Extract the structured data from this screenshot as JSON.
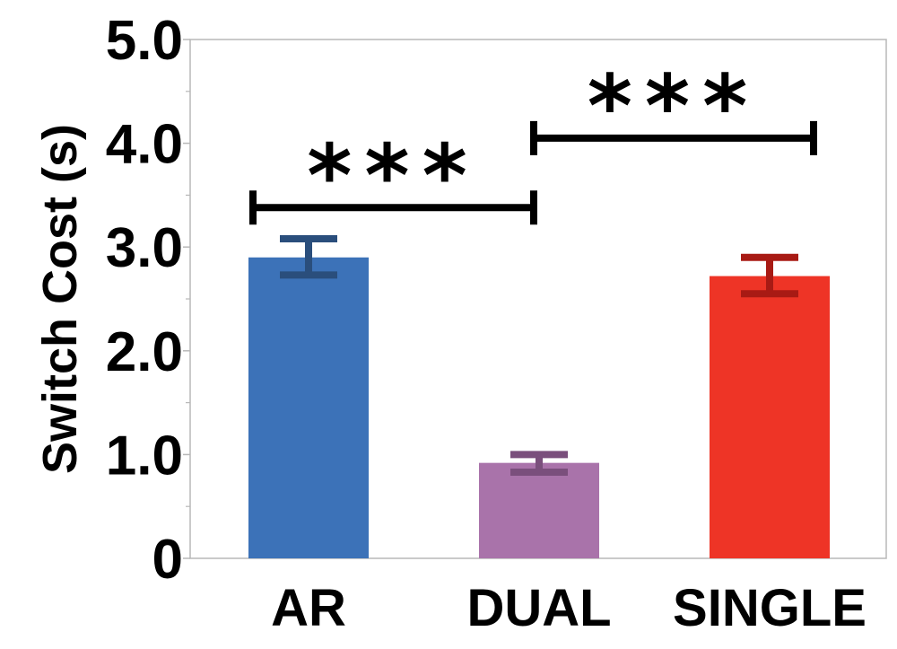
{
  "chart_data": {
    "type": "bar",
    "title": "",
    "xlabel": "",
    "ylabel": "Switch Cost (s)",
    "ylim": [
      0,
      5.0
    ],
    "yticks": [
      {
        "value": 0,
        "label": "0"
      },
      {
        "value": 1,
        "label": "1.0"
      },
      {
        "value": 2,
        "label": "2.0"
      },
      {
        "value": 3,
        "label": "3.0"
      },
      {
        "value": 4,
        "label": "4.0"
      },
      {
        "value": 5,
        "label": "5.0"
      }
    ],
    "minor_ticks": [
      0.5,
      1.5,
      2.5,
      3.5,
      4.5
    ],
    "categories": [
      "AR",
      "DUAL",
      "SINGLE"
    ],
    "values": [
      2.9,
      0.92,
      2.72
    ],
    "error_low": [
      2.73,
      0.83,
      2.55
    ],
    "error_high": [
      3.08,
      1.0,
      2.9
    ],
    "colors": [
      "#3C72B8",
      "#A973AA",
      "#EE3426"
    ],
    "error_colors": [
      "#2A4E7C",
      "#7A4F7C",
      "#A81A14"
    ],
    "grid": false,
    "legend": "none",
    "significance": [
      {
        "from": "AR",
        "to": "DUAL",
        "y": 3.38,
        "label": "***"
      },
      {
        "from": "DUAL",
        "to": "SINGLE",
        "y": 4.05,
        "label": "***"
      }
    ]
  }
}
